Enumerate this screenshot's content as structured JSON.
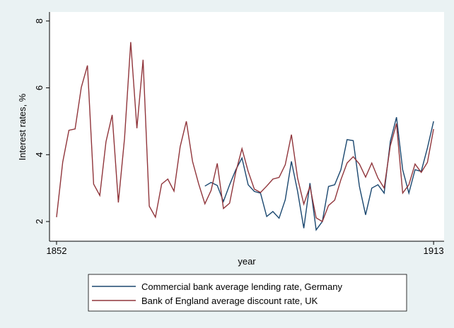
{
  "chart_data": {
    "type": "line",
    "x": [
      1852,
      1853,
      1854,
      1855,
      1856,
      1857,
      1858,
      1859,
      1860,
      1861,
      1862,
      1863,
      1864,
      1865,
      1866,
      1867,
      1868,
      1869,
      1870,
      1871,
      1872,
      1873,
      1874,
      1875,
      1876,
      1877,
      1878,
      1879,
      1880,
      1881,
      1882,
      1883,
      1884,
      1885,
      1886,
      1887,
      1888,
      1889,
      1890,
      1891,
      1892,
      1893,
      1894,
      1895,
      1896,
      1897,
      1898,
      1899,
      1900,
      1901,
      1902,
      1903,
      1904,
      1905,
      1906,
      1907,
      1908,
      1909,
      1910,
      1911,
      1912,
      1913
    ],
    "series": [
      {
        "name": "Commercial bank average lending rate, Germany",
        "color": "#1a476f",
        "values": [
          null,
          null,
          null,
          null,
          null,
          null,
          null,
          null,
          null,
          null,
          null,
          null,
          null,
          null,
          null,
          null,
          null,
          null,
          null,
          null,
          null,
          null,
          null,
          null,
          3.06,
          3.17,
          3.08,
          2.6,
          3.1,
          3.55,
          3.9,
          3.1,
          2.9,
          2.85,
          2.15,
          2.3,
          2.1,
          2.65,
          3.8,
          2.9,
          1.8,
          3.15,
          1.75,
          2.0,
          3.05,
          3.1,
          3.55,
          4.45,
          4.42,
          3.05,
          2.2,
          3.0,
          3.1,
          2.85,
          4.4,
          5.12,
          3.55,
          2.85,
          3.55,
          3.5,
          4.2,
          5.0
        ]
      },
      {
        "name": "Bank of England average discount rate, UK",
        "color": "#90353b",
        "values": [
          2.13,
          3.78,
          4.73,
          4.77,
          6.01,
          6.67,
          3.12,
          2.78,
          4.39,
          5.19,
          2.57,
          4.49,
          7.37,
          4.79,
          6.84,
          2.46,
          2.13,
          3.12,
          3.27,
          2.91,
          4.24,
          5.0,
          3.8,
          3.12,
          2.53,
          2.93,
          3.74,
          2.39,
          2.55,
          3.48,
          4.18,
          3.5,
          2.97,
          2.87,
          3.06,
          3.27,
          3.32,
          3.7,
          4.6,
          3.3,
          2.52,
          3.05,
          2.11,
          2.0,
          2.48,
          2.64,
          3.25,
          3.75,
          3.94,
          3.72,
          3.33,
          3.75,
          3.3,
          3.0,
          4.27,
          4.93,
          2.85,
          3.1,
          3.72,
          3.47,
          3.77,
          4.77
        ]
      }
    ],
    "xlabel": "year",
    "ylabel": "Interest rates, %",
    "xlim": [
      1850.86,
      1914.7
    ],
    "ylim": [
      1.41,
      8.27
    ],
    "xticks": [
      1852,
      1913
    ],
    "yticks": [
      2,
      4,
      6,
      8
    ]
  }
}
